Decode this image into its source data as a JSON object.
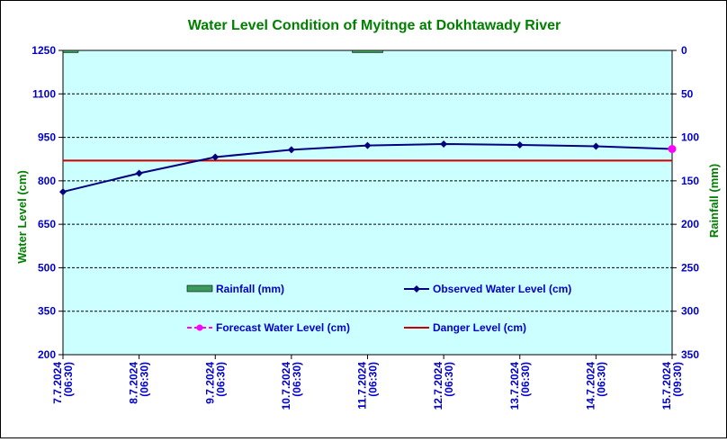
{
  "chart_data": {
    "type": "line",
    "title": "Water Level Condition of Myitnge at Dokhtawady River",
    "ylabel": "Water Level (cm)",
    "y2label": "Rainfall (mm)",
    "ylim": [
      200,
      1250
    ],
    "y2lim": [
      350,
      0
    ],
    "yticks": [
      "1250",
      "1100",
      "950",
      "800",
      "650",
      "500",
      "350",
      "200"
    ],
    "y2ticks": [
      "0",
      "50",
      "100",
      "150",
      "200",
      "250",
      "300",
      "350"
    ],
    "categories": [
      "7.7.2024 (06:30)",
      "8.7.2024 (06:30)",
      "9.7.2024 (06:30)",
      "10.7.2024 (06:30)",
      "11.7.2024 (06:30)",
      "12.7.2024 (06:30)",
      "13.7.2024 (06:30)",
      "14.7.2024 (06:30)",
      "15.7.2024 (09:30)"
    ],
    "series": [
      {
        "name": "Rainfall (mm)",
        "kind": "bar",
        "axis": "right",
        "color": "#3a9a5a",
        "values": [
          0.5,
          0,
          0,
          0,
          0.5,
          0,
          0,
          0,
          0
        ]
      },
      {
        "name": "Observed Water Level (cm)",
        "kind": "line",
        "axis": "left",
        "color": "#000080",
        "values": [
          762,
          826,
          882,
          907,
          922,
          927,
          924,
          919,
          910
        ]
      },
      {
        "name": "Forecast Water Level (cm)",
        "kind": "line",
        "axis": "left",
        "color": "#ff00ff",
        "values": [
          null,
          null,
          null,
          null,
          null,
          null,
          null,
          null,
          910
        ]
      },
      {
        "name": "Danger Level (cm)",
        "kind": "line",
        "axis": "left",
        "color": "#cc0000",
        "values": [
          870,
          870,
          870,
          870,
          870,
          870,
          870,
          870,
          870
        ]
      }
    ],
    "grid": true,
    "legend": "inside-plot",
    "colors": {
      "plot_background": "#ccffff",
      "title": "#008000",
      "axis_labels": "#0000cc",
      "axis_titles": "#008000"
    }
  }
}
